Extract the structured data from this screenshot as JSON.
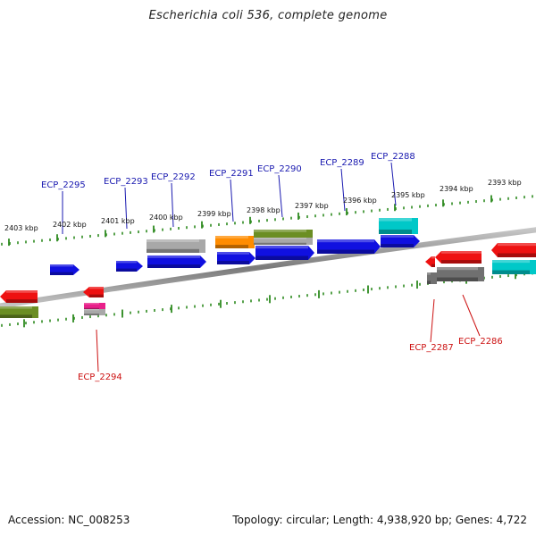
{
  "title": "Escherichia coli 536, complete genome",
  "footer": {
    "accession": "Accession: NC_008253",
    "summary": "Topology: circular; Length: 4,938,920 bp; Genes: 4,722"
  },
  "colors": {
    "backbone": "#8c8c8c",
    "tick": "#2e8b20",
    "label_forward": "#1a1ab0",
    "label_reverse": "#cc1111"
  },
  "kbp_labels": [
    "2403 kbp",
    "2402 kbp",
    "2401 kbp",
    "2400 kbp",
    "2399 kbp",
    "2398 kbp",
    "2397 kbp",
    "2396 kbp",
    "2395 kbp",
    "2394 kbp",
    "2393 kbp"
  ],
  "gene_labels": [
    {
      "text": "ECP_2295",
      "strand": "forward"
    },
    {
      "text": "ECP_2293",
      "strand": "forward"
    },
    {
      "text": "ECP_2292",
      "strand": "forward"
    },
    {
      "text": "ECP_2291",
      "strand": "forward"
    },
    {
      "text": "ECP_2290",
      "strand": "forward"
    },
    {
      "text": "ECP_2289",
      "strand": "forward"
    },
    {
      "text": "ECP_2288",
      "strand": "forward"
    },
    {
      "text": "ECP_2294",
      "strand": "reverse"
    },
    {
      "text": "ECP_2287",
      "strand": "reverse"
    },
    {
      "text": "ECP_2286",
      "strand": "reverse"
    }
  ],
  "features": [
    {
      "name": "forward-gene",
      "color": "#1010e0",
      "dir": "right"
    },
    {
      "name": "forward-gene",
      "color": "#1010e0",
      "dir": "right"
    },
    {
      "name": "forward-gene",
      "color": "#1010e0",
      "dir": "right"
    },
    {
      "name": "forward-gene",
      "color": "#1010e0",
      "dir": "right"
    },
    {
      "name": "forward-gene",
      "color": "#1010e0",
      "dir": "right"
    },
    {
      "name": "forward-gene",
      "color": "#1010e0",
      "dir": "right"
    },
    {
      "name": "forward-gene",
      "color": "#1010e0",
      "dir": "right"
    },
    {
      "name": "forward-feature-gray",
      "color": "#a8a8a8",
      "dir": "none"
    },
    {
      "name": "forward-feature-orange",
      "color": "#ff8c00",
      "dir": "none"
    },
    {
      "name": "forward-feature-olive",
      "color": "#6b8e23",
      "dir": "none"
    },
    {
      "name": "forward-feature-gray",
      "color": "#a8a8a8",
      "dir": "none"
    },
    {
      "name": "forward-feature-cyan",
      "color": "#00c8c8",
      "dir": "none"
    },
    {
      "name": "reverse-gene",
      "color": "#ee1111",
      "dir": "left"
    },
    {
      "name": "reverse-gene",
      "color": "#ee1111",
      "dir": "left"
    },
    {
      "name": "reverse-gene",
      "color": "#ee1111",
      "dir": "left"
    },
    {
      "name": "reverse-gene",
      "color": "#ee1111",
      "dir": "left"
    },
    {
      "name": "reverse-gene",
      "color": "#ee1111",
      "dir": "left"
    },
    {
      "name": "reverse-feature-pink",
      "color": "#e8208a",
      "dir": "none"
    },
    {
      "name": "reverse-feature-olive",
      "color": "#6b8e23",
      "dir": "none"
    },
    {
      "name": "reverse-feature-gray",
      "color": "#a8a8a8",
      "dir": "none"
    },
    {
      "name": "reverse-feature-darkgray",
      "color": "#707070",
      "dir": "none"
    },
    {
      "name": "reverse-feature-darkgray",
      "color": "#707070",
      "dir": "none"
    },
    {
      "name": "reverse-feature-cyan",
      "color": "#00c8c8",
      "dir": "none"
    }
  ]
}
